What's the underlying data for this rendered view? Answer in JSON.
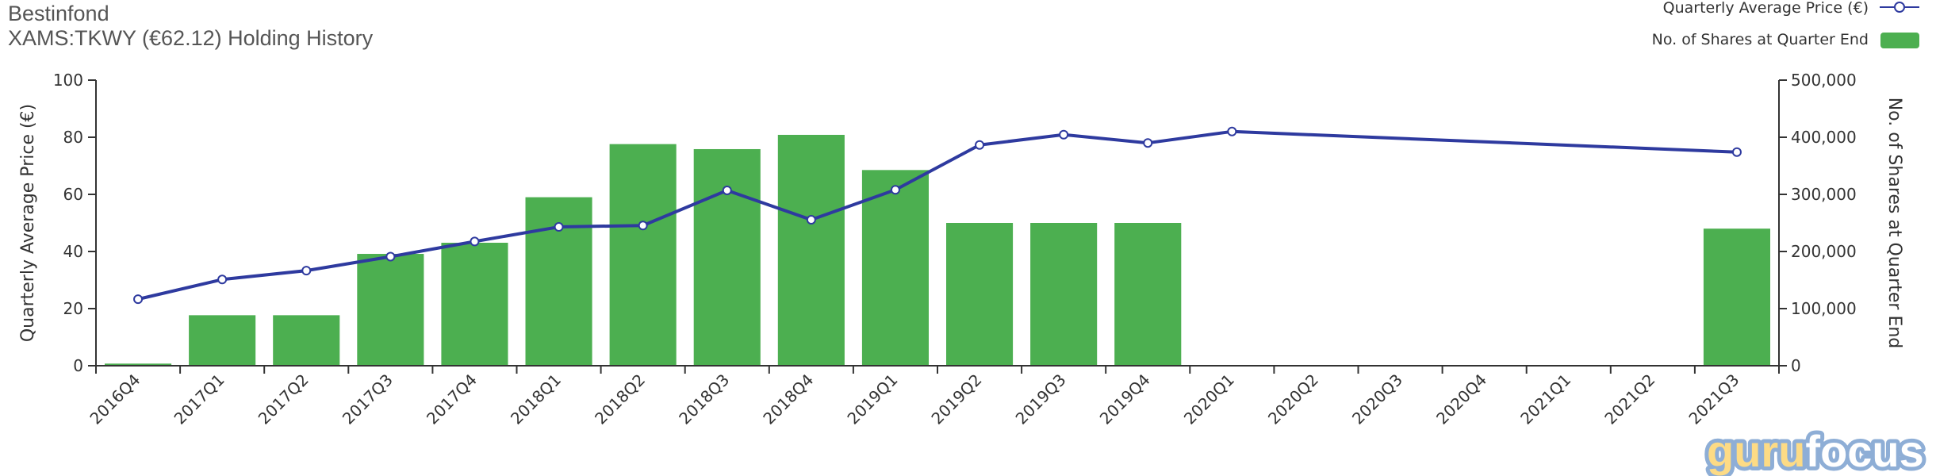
{
  "header": {
    "fund_name": "Bestinfond",
    "subtitle": "XAMS:TKWY (€62.12)  Holding History"
  },
  "watermark": {
    "logo_text_1": "guru",
    "logo_text_2": "focus"
  },
  "colors": {
    "price_line": "#2e3a9f",
    "shares_bar": "#4caf50",
    "axis": "#333333"
  },
  "chart_data": {
    "type": "bar+line",
    "categories": [
      "2016Q4",
      "2017Q1",
      "2017Q2",
      "2017Q3",
      "2017Q4",
      "2018Q1",
      "2018Q2",
      "2018Q3",
      "2018Q4",
      "2019Q1",
      "2019Q2",
      "2019Q3",
      "2019Q4",
      "2020Q1",
      "2020Q2",
      "2020Q3",
      "2020Q4",
      "2021Q1",
      "2021Q2",
      "2021Q3"
    ],
    "series": [
      {
        "name": "Quarterly Average Price (€)",
        "type": "line",
        "axis": "left",
        "values": [
          23.3,
          30.2,
          33.3,
          38.2,
          43.5,
          48.6,
          49.1,
          61.4,
          51.1,
          61.6,
          77.3,
          80.9,
          78.0,
          82.0,
          null,
          null,
          null,
          null,
          null,
          74.8
        ]
      },
      {
        "name": "No. of Shares at Quarter End",
        "type": "bar",
        "axis": "right",
        "values": [
          3700,
          88400,
          88400,
          195800,
          215300,
          295000,
          388000,
          379200,
          404200,
          342600,
          250000,
          250000,
          250000,
          0,
          0,
          0,
          0,
          0,
          0,
          240000
        ]
      }
    ],
    "ylabel_left": "Quarterly Average Price (€)",
    "ylabel_right": "No. of Shares at Quarter End",
    "ylim_left": [
      0,
      100
    ],
    "ylim_right": [
      0,
      500000
    ],
    "yticks_left": [
      "0",
      "20",
      "40",
      "60",
      "80",
      "100"
    ],
    "yticks_right": [
      "0",
      "100,000",
      "200,000",
      "300,000",
      "400,000",
      "500,000"
    ],
    "grid": false,
    "legend": "top-right"
  }
}
